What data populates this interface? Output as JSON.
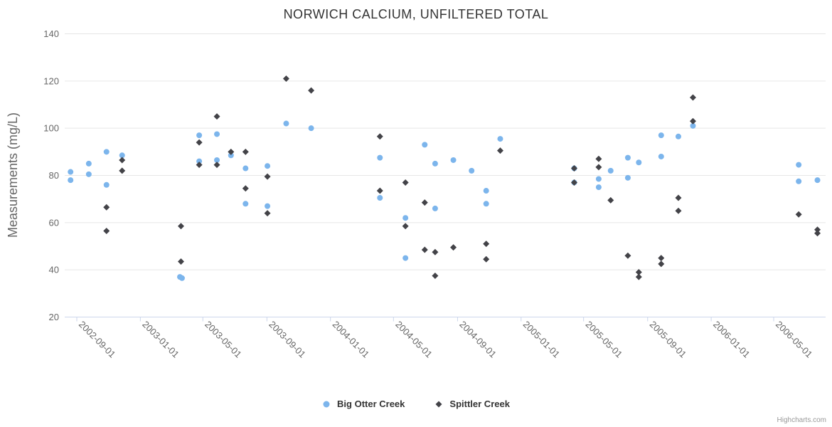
{
  "chart_data": {
    "type": "scatter",
    "title": "NORWICH CALCIUM, UNFILTERED TOTAL",
    "xlabel": "",
    "ylabel": "Measurements (mg/L)",
    "ylim": [
      20,
      140
    ],
    "yticks": [
      20,
      40,
      60,
      80,
      100,
      120,
      140
    ],
    "xticks": [
      "2002-09-01",
      "2003-01-01",
      "2003-05-01",
      "2003-09-01",
      "2004-01-01",
      "2004-05-01",
      "2004-09-01",
      "2005-01-01",
      "2005-05-01",
      "2005-09-01",
      "2006-01-01",
      "2006-05-01"
    ],
    "grid": "horizontal-only",
    "legend_position": "bottom-center",
    "colors": {
      "grid_line": "#e6e6e6",
      "axis_line": "#ccd6eb",
      "title_text": "#333333",
      "axis_label_text": "#666666",
      "legend_text": "#333333",
      "credit_text": "#999999"
    },
    "series": [
      {
        "name": "Big Otter Creek",
        "color": "#7cb5ec",
        "marker": "circle",
        "points": [
          [
            "2002-08-20",
            81.5
          ],
          [
            "2002-08-20",
            78
          ],
          [
            "2002-09-24",
            85
          ],
          [
            "2002-09-24",
            80.5
          ],
          [
            "2002-10-28",
            90
          ],
          [
            "2002-10-28",
            76
          ],
          [
            "2002-11-27",
            88.5
          ],
          [
            "2003-03-18",
            37
          ],
          [
            "2003-03-22",
            36.5
          ],
          [
            "2003-04-24",
            97
          ],
          [
            "2003-04-24",
            86
          ],
          [
            "2003-05-28",
            97.5
          ],
          [
            "2003-05-28",
            86.5
          ],
          [
            "2003-06-24",
            88.5
          ],
          [
            "2003-07-22",
            83
          ],
          [
            "2003-07-22",
            68
          ],
          [
            "2003-09-02",
            84
          ],
          [
            "2003-09-02",
            67
          ],
          [
            "2003-10-08",
            102
          ],
          [
            "2003-11-25",
            100
          ],
          [
            "2004-04-05",
            87.5
          ],
          [
            "2004-04-05",
            70.5
          ],
          [
            "2004-05-24",
            62
          ],
          [
            "2004-05-24",
            45
          ],
          [
            "2004-06-30",
            93
          ],
          [
            "2004-07-20",
            85
          ],
          [
            "2004-07-20",
            66
          ],
          [
            "2004-08-24",
            86.5
          ],
          [
            "2004-09-28",
            82
          ],
          [
            "2004-10-26",
            73.5
          ],
          [
            "2004-10-26",
            68
          ],
          [
            "2004-11-22",
            95.5
          ],
          [
            "2005-04-13",
            83
          ],
          [
            "2005-04-13",
            77
          ],
          [
            "2005-05-30",
            78.5
          ],
          [
            "2005-05-30",
            75
          ],
          [
            "2005-06-22",
            82
          ],
          [
            "2005-07-25",
            87.5
          ],
          [
            "2005-07-25",
            79
          ],
          [
            "2005-08-15",
            85.5
          ],
          [
            "2005-09-27",
            97
          ],
          [
            "2005-09-27",
            88
          ],
          [
            "2005-10-30",
            96.5
          ],
          [
            "2005-11-27",
            101
          ],
          [
            "2006-06-18",
            84.5
          ],
          [
            "2006-06-18",
            77.5
          ],
          [
            "2006-07-24",
            78
          ]
        ]
      },
      {
        "name": "Spittler Creek",
        "color": "#434348",
        "marker": "diamond",
        "points": [
          [
            "2002-10-28",
            66.5
          ],
          [
            "2002-10-28",
            56.5
          ],
          [
            "2002-11-27",
            86.5
          ],
          [
            "2002-11-27",
            82
          ],
          [
            "2003-03-20",
            58.5
          ],
          [
            "2003-03-20",
            43.5
          ],
          [
            "2003-04-24",
            94
          ],
          [
            "2003-04-24",
            84.5
          ],
          [
            "2003-05-28",
            105
          ],
          [
            "2003-05-28",
            84.5
          ],
          [
            "2003-06-24",
            90
          ],
          [
            "2003-07-22",
            90
          ],
          [
            "2003-07-22",
            74.5
          ],
          [
            "2003-09-02",
            79.5
          ],
          [
            "2003-09-02",
            64
          ],
          [
            "2003-10-08",
            121
          ],
          [
            "2003-11-25",
            116
          ],
          [
            "2004-04-05",
            96.5
          ],
          [
            "2004-04-05",
            73.5
          ],
          [
            "2004-05-24",
            77
          ],
          [
            "2004-05-24",
            58.5
          ],
          [
            "2004-06-30",
            68.5
          ],
          [
            "2004-06-30",
            48.5
          ],
          [
            "2004-07-20",
            47.5
          ],
          [
            "2004-07-20",
            37.5
          ],
          [
            "2004-08-24",
            49.5
          ],
          [
            "2004-10-26",
            51
          ],
          [
            "2004-10-26",
            44.5
          ],
          [
            "2004-11-22",
            90.5
          ],
          [
            "2005-04-13",
            83
          ],
          [
            "2005-04-13",
            77
          ],
          [
            "2005-05-30",
            87
          ],
          [
            "2005-05-30",
            83.5
          ],
          [
            "2005-06-22",
            69.5
          ],
          [
            "2005-07-25",
            46
          ],
          [
            "2005-08-15",
            39
          ],
          [
            "2005-08-15",
            37
          ],
          [
            "2005-09-27",
            45
          ],
          [
            "2005-09-27",
            42.5
          ],
          [
            "2005-10-30",
            70.5
          ],
          [
            "2005-10-30",
            65
          ],
          [
            "2005-11-27",
            113
          ],
          [
            "2005-11-27",
            103
          ],
          [
            "2006-06-18",
            63.5
          ],
          [
            "2006-07-24",
            57
          ],
          [
            "2006-07-24",
            55.5
          ]
        ]
      }
    ],
    "credit": "Highcharts.com"
  }
}
